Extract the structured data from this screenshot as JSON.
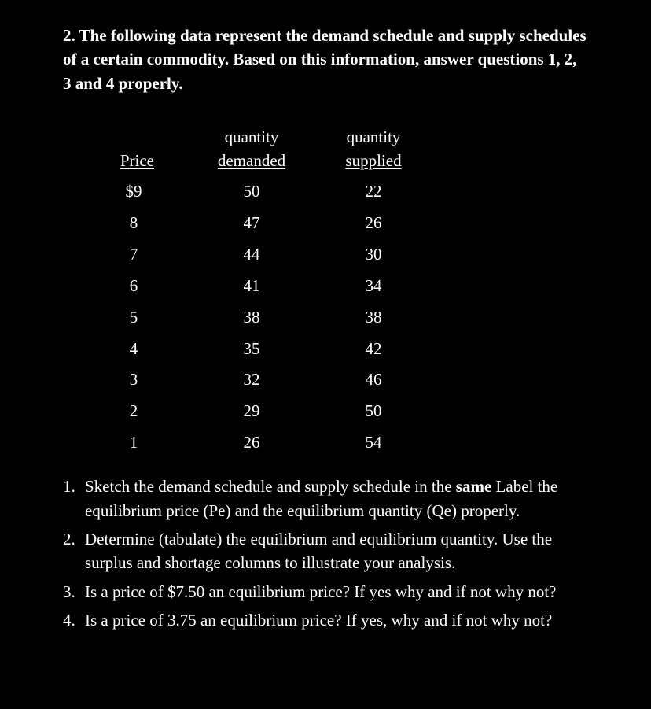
{
  "heading": "2. The following data represent the demand  schedule and supply schedules of a certain commodity. Based on this information, answer questions   1,    2,    3    and 4 properly.",
  "table": {
    "headers": {
      "price": "Price",
      "qd_top": "quantity",
      "qd_bottom": "demanded",
      "qs_top": "quantity",
      "qs_bottom": "supplied"
    },
    "rows": [
      {
        "price": "$9",
        "qd": "50",
        "qs": "22"
      },
      {
        "price": "8",
        "qd": "47",
        "qs": "26"
      },
      {
        "price": "7",
        "qd": "44",
        "qs": "30"
      },
      {
        "price": "6",
        "qd": "41",
        "qs": "34"
      },
      {
        "price": "5",
        "qd": "38",
        "qs": "38"
      },
      {
        "price": "4",
        "qd": "35",
        "qs": "42"
      },
      {
        "price": "3",
        "qd": "32",
        "qs": "46"
      },
      {
        "price": "2",
        "qd": "29",
        "qs": "50"
      },
      {
        "price": "1",
        "qd": "26",
        "qs": "54"
      }
    ]
  },
  "questions": {
    "q1": {
      "num": "1.",
      "text_before": "Sketch the demand schedule and supply schedule in the ",
      "bold": "same",
      "text_after": " Label the equilibrium price (Pe) and the equilibrium quantity (Qe) properly."
    },
    "q2": {
      "num": "2.",
      "text": "Determine (tabulate) the equilibrium and equilibrium quantity. Use the surplus and shortage columns to illustrate your analysis."
    },
    "q3": {
      "num": "3.",
      "text": "Is a price of $7.50 an equilibrium price? If yes why and if not why not?"
    },
    "q4": {
      "num": "4.",
      "text": "Is a price of 3.75 an equilibrium price? If yes, why and if not why not?"
    }
  },
  "style": {
    "background_color": "#000000",
    "text_color": "#ffffff",
    "font_family": "serif",
    "heading_fontsize": 21,
    "body_fontsize": 21,
    "table_col_widths": {
      "price": 140,
      "qd": 160,
      "qs": 150
    }
  }
}
